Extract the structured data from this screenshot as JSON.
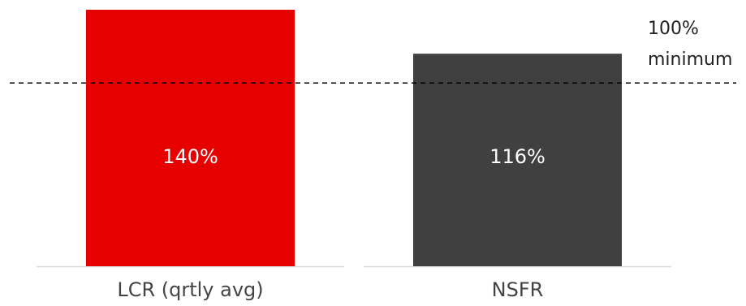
{
  "chart_data": {
    "type": "bar",
    "categories": [
      "LCR (qrtly  avg)",
      "NSFR"
    ],
    "values": [
      140,
      116
    ],
    "value_labels": [
      "140%",
      "116%"
    ],
    "colors": [
      "#e60000",
      "#404040"
    ],
    "ylim": [
      0,
      140
    ],
    "reference_line": {
      "value": 100,
      "label_line1": "100%",
      "label_line2": "minimum",
      "style": "dashed",
      "color": "#000000"
    },
    "grid": false,
    "title": "",
    "xlabel": "",
    "ylabel": ""
  }
}
